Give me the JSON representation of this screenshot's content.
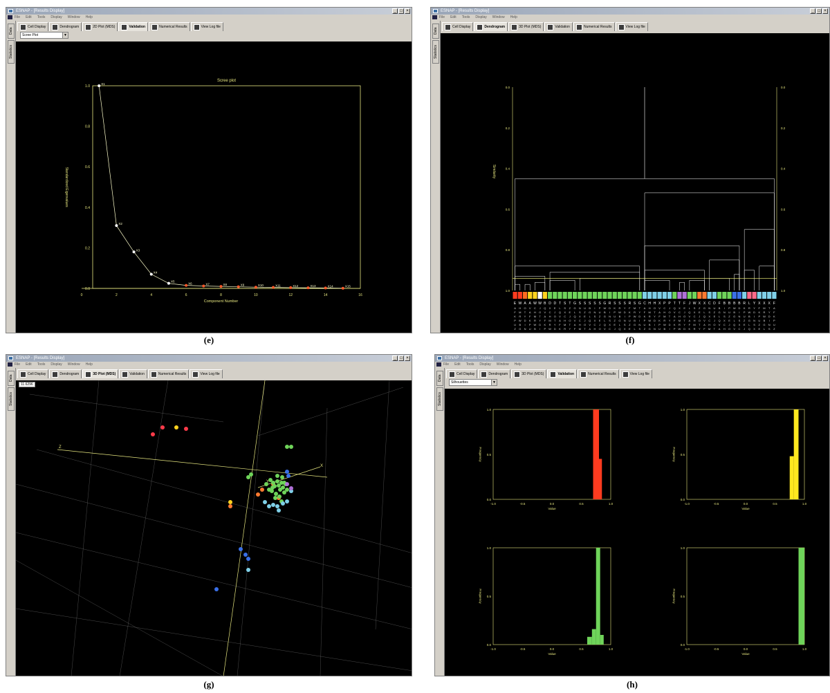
{
  "panels": {
    "e": {
      "window_title": "ESNAP - [Results Display]",
      "menu": [
        "File",
        "Edit",
        "Tools",
        "Display",
        "Window",
        "Help"
      ],
      "side_tabs": [
        "Data",
        "Statistics"
      ],
      "tabs": [
        "Cell Display",
        "Dendrogram",
        "2D Plot (MDS)",
        "Validation",
        "Numerical Results",
        "View Log file"
      ],
      "active_tab": "Validation",
      "select_value": "Scree Plot",
      "caption": "(e)"
    },
    "f": {
      "window_title": "ESNAP - [Results Display]",
      "menu": [
        "File",
        "Edit",
        "Tools",
        "Display",
        "Window",
        "Help"
      ],
      "side_tabs": [
        "Data",
        "Statistics"
      ],
      "tabs": [
        "Cell Display",
        "Dendrogram",
        "3D Plot (MDS)",
        "Validation",
        "Numerical Results",
        "View Log file"
      ],
      "active_tab": "Dendrogram",
      "caption": "(f)"
    },
    "g": {
      "window_title": "ESNAP - [Results Display]",
      "menu": [
        "File",
        "Edit",
        "Tools",
        "Display",
        "Window",
        "Help"
      ],
      "side_tabs": [
        "Data",
        "Statistics"
      ],
      "tabs": [
        "Cell Display",
        "Dendrogram",
        "3D Plot (MDS)",
        "Validation",
        "Numerical Results",
        "View Log file"
      ],
      "active_tab": "3D Plot (MDS)",
      "readout": "11.6296",
      "axis_labels": [
        "Z",
        "Y",
        "X"
      ],
      "caption": "(g)"
    },
    "h": {
      "window_title": "ESNAP - [Results Display]",
      "menu": [
        "File",
        "Edit",
        "Tools",
        "Display",
        "Window",
        "Help"
      ],
      "side_tabs": [
        "Data",
        "Statistics"
      ],
      "tabs": [
        "Cell Display",
        "Dendrogram",
        "3D Plot (MDS)",
        "Validation",
        "Numerical Results",
        "View Log file"
      ],
      "active_tab": "Validation",
      "select_value": "Silhouettes",
      "caption": "(h)"
    }
  },
  "chart_data": [
    {
      "id": "scree",
      "type": "line",
      "title": "Scree plot",
      "xlabel": "Component Number",
      "ylabel": "Standardized Eigenvalues",
      "xlim": [
        0,
        16
      ],
      "ylim": [
        0.0,
        1.0
      ],
      "xticks": [
        "0",
        "2",
        "4",
        "6",
        "8",
        "10",
        "12",
        "14",
        "16"
      ],
      "yticks": [
        "0.0",
        "0.2",
        "0.4",
        "0.6",
        "0.8",
        "1.0"
      ],
      "points": [
        {
          "x": 1,
          "y": 1.0,
          "label": "X1"
        },
        {
          "x": 2,
          "y": 0.31,
          "label": "X2"
        },
        {
          "x": 3,
          "y": 0.18,
          "label": "X3"
        },
        {
          "x": 4,
          "y": 0.07,
          "label": "X4"
        },
        {
          "x": 5,
          "y": 0.025,
          "label": "X5"
        },
        {
          "x": 6,
          "y": 0.015,
          "label": "X6"
        },
        {
          "x": 7,
          "y": 0.012,
          "label": "X7"
        },
        {
          "x": 8,
          "y": 0.01,
          "label": "X8"
        },
        {
          "x": 9,
          "y": 0.008,
          "label": "X9"
        },
        {
          "x": 10,
          "y": 0.006,
          "label": "X10"
        },
        {
          "x": 11,
          "y": 0.005,
          "label": "X11"
        },
        {
          "x": 12,
          "y": 0.004,
          "label": "X12"
        },
        {
          "x": 13,
          "y": 0.003,
          "label": "X13"
        },
        {
          "x": 14,
          "y": 0.002,
          "label": "X14"
        },
        {
          "x": 15,
          "y": 0.001,
          "label": "X15"
        }
      ],
      "colors": {
        "line": "#ffffcc",
        "first_points": "#ffffff",
        "later_points": "#ff5a2a",
        "axis": "#e8e880"
      }
    },
    {
      "id": "dendrogram",
      "type": "dendrogram",
      "ylabel": "Similarity",
      "yticks": [
        "0.0",
        "0.2",
        "0.4",
        "0.6",
        "0.8",
        "1.0"
      ],
      "ylim": [
        0.0,
        1.0
      ],
      "leaf_colors": [
        "#ff3b1f",
        "#ff3b1f",
        "#ff6a1f",
        "#ffd21f",
        "#ffd21f",
        "#ffffff",
        "#ffd21f",
        "#6fd45a",
        "#6fd45a",
        "#6fd45a",
        "#6fd45a",
        "#6fd45a",
        "#6fd45a",
        "#6fd45a",
        "#6fd45a",
        "#6fd45a",
        "#6fd45a",
        "#6fd45a",
        "#6fd45a",
        "#6fd45a",
        "#6fd45a",
        "#6fd45a",
        "#6fd45a",
        "#6fd45a",
        "#6fd45a",
        "#6fd45a",
        "#7fd0e8",
        "#7fd0e8",
        "#7fd0e8",
        "#7fd0e8",
        "#7fd0e8",
        "#7fd0e8",
        "#6fd45a",
        "#b070d8",
        "#b070d8",
        "#6fd45a",
        "#6fd45a",
        "#ff7a30",
        "#ff7a30",
        "#7fd0e8",
        "#7fd0e8",
        "#6fd45a",
        "#6fd45a",
        "#6fd45a",
        "#3a70e8",
        "#3a70e8",
        "#7fd0e8",
        "#ff6a8a",
        "#ff6a8a",
        "#7fd0e8",
        "#7fd0e8",
        "#7fd0e8",
        "#7fd0e8"
      ],
      "leaf_letters": "EWAAWWBDDTSTGSSSSSGRSSSRSGCHHXPPTTFJWXXCDFBBBBRLYXXXF",
      "colors": {
        "axis": "#e8e880",
        "lines": "#ffffff",
        "cut": "#ffff80"
      }
    },
    {
      "id": "mds3d",
      "type": "scatter3d",
      "groups": [
        {
          "color": "#ff3b4a",
          "n": 3
        },
        {
          "color": "#ffd21f",
          "n": 2
        },
        {
          "color": "#ff7a30",
          "n": 5
        },
        {
          "color": "#6fd45a",
          "n": 26
        },
        {
          "color": "#7fd0e8",
          "n": 10
        },
        {
          "color": "#3a70e8",
          "n": 6
        },
        {
          "color": "#b070d8",
          "n": 2
        }
      ]
    },
    {
      "id": "silhouettes",
      "type": "bar",
      "xlabel": "Value",
      "ylabel": "Frequency",
      "xticks": [
        "-1.0",
        "-0.5",
        "0.0",
        "0.5",
        "1.0"
      ],
      "yticks": [
        "0.0",
        "0.5",
        "1.0"
      ],
      "xlim": [
        -1.0,
        1.0
      ],
      "ylim": [
        0.0,
        1.0
      ],
      "histograms": [
        {
          "color": "#ff3b1f",
          "bins": [
            {
              "x0": 0.7,
              "x1": 0.8,
              "y": 1.0
            },
            {
              "x0": 0.8,
              "x1": 0.85,
              "y": 0.45
            }
          ]
        },
        {
          "color": "#ffe81f",
          "bins": [
            {
              "x0": 0.75,
              "x1": 0.82,
              "y": 0.48
            },
            {
              "x0": 0.82,
              "x1": 0.9,
              "y": 1.0
            }
          ]
        },
        {
          "color": "#6fd45a",
          "bins": [
            {
              "x0": 0.6,
              "x1": 0.68,
              "y": 0.08
            },
            {
              "x0": 0.68,
              "x1": 0.75,
              "y": 0.16
            },
            {
              "x0": 0.75,
              "x1": 0.82,
              "y": 1.0
            },
            {
              "x0": 0.82,
              "x1": 0.88,
              "y": 0.1
            }
          ]
        },
        {
          "color": "#6fd45a",
          "bins": [
            {
              "x0": 0.9,
              "x1": 1.0,
              "y": 1.0
            }
          ]
        }
      ],
      "colors": {
        "axis": "#e8e880"
      }
    }
  ]
}
